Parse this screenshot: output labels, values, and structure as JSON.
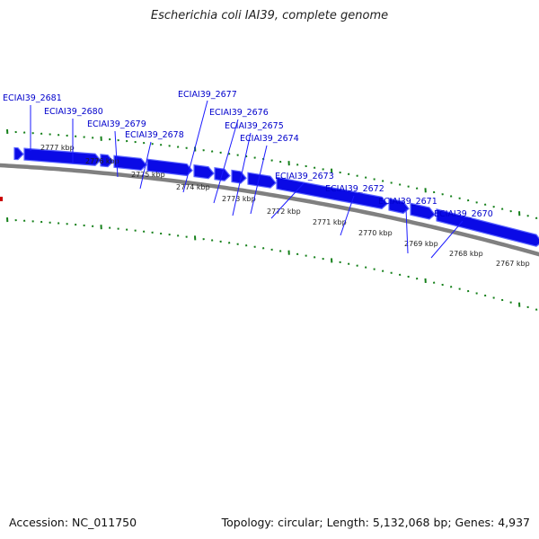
{
  "title": "Escherichia coli IAI39, complete genome",
  "footer": {
    "accession": "Accession: NC_011750",
    "summary": "Topology: circular; Length: 5,132,068 bp; Genes: 4,937"
  },
  "colors": {
    "gene": "#0a0ae6",
    "gene_edge": "#5a64ff",
    "label": "#0000cc",
    "leader": "#1a1aff",
    "ruler": "#15801a",
    "backbone": "#808080",
    "tick_text": "#222222"
  },
  "ticks": [
    {
      "label": "2777 kbp"
    },
    {
      "label": "2776 kbp"
    },
    {
      "label": "2775 kbp"
    },
    {
      "label": "2774 kbp"
    },
    {
      "label": "2773 kbp"
    },
    {
      "label": "2772 kbp"
    },
    {
      "label": "2771 kbp"
    },
    {
      "label": "2770 kbp"
    },
    {
      "label": "2769 kbp"
    },
    {
      "label": "2768 kbp"
    },
    {
      "label": "2767 kbp"
    }
  ],
  "genes": [
    {
      "label": "ECIAI39_2681"
    },
    {
      "label": "ECIAI39_2680"
    },
    {
      "label": "ECIAI39_2679"
    },
    {
      "label": "ECIAI39_2678"
    },
    {
      "label": "ECIAI39_2677"
    },
    {
      "label": "ECIAI39_2676"
    },
    {
      "label": "ECIAI39_2675"
    },
    {
      "label": "ECIAI39_2674"
    },
    {
      "label": "ECIAI39_2673"
    },
    {
      "label": "ECIAI39_2672"
    },
    {
      "label": "ECIAI39_2671"
    },
    {
      "label": "ECIAI39_2670"
    }
  ]
}
